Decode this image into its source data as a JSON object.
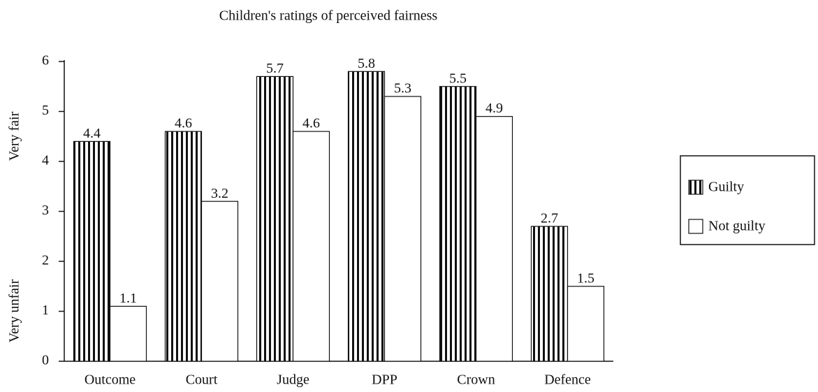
{
  "chart_data": {
    "type": "bar",
    "title": "Children's ratings of perceived fairness",
    "y_annotations": [
      "Very fair",
      "Very unfair"
    ],
    "categories": [
      "Outcome",
      "Court",
      "Judge",
      "DPP",
      "Crown",
      "Defence"
    ],
    "series": [
      {
        "name": "Guilty",
        "color": "#111111",
        "pattern": "vertical-stripes",
        "values": [
          4.4,
          4.6,
          5.7,
          5.8,
          5.5,
          2.7
        ]
      },
      {
        "name": "Not guilty",
        "color": "#ffffff",
        "values": [
          1.1,
          3.2,
          4.6,
          5.3,
          4.9,
          1.5
        ]
      }
    ],
    "ylim": [
      0,
      6
    ],
    "yticks": [
      0,
      1,
      2,
      3,
      4,
      5,
      6
    ],
    "grid": false,
    "legend": "right"
  }
}
